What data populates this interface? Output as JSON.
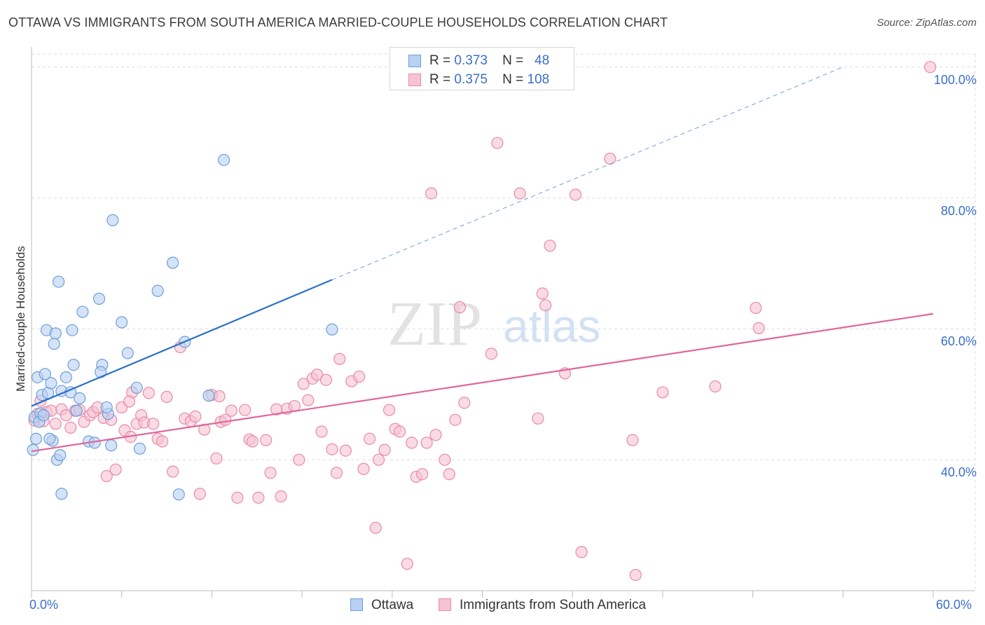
{
  "title": "OTTAWA VS IMMIGRANTS FROM SOUTH AMERICA MARRIED-COUPLE HOUSEHOLDS CORRELATION CHART",
  "source": "Source: ZipAtlas.com",
  "watermark": {
    "zip": "ZIP",
    "atlas": "atlas"
  },
  "legend_top": [
    {
      "r_label": "R =",
      "r_value": "0.373",
      "n_label": "N =",
      "n_value": "48"
    },
    {
      "r_label": "R =",
      "r_value": "0.375",
      "n_label": "N =",
      "n_value": "108"
    }
  ],
  "legend_bottom": [
    "Ottawa",
    "Immigrants from South America"
  ],
  "colors": {
    "ottawa_fill": "#b7d0f3",
    "ottawa_stroke": "#6f9ed8",
    "ottawa_line": "#2a6fc9",
    "sa_fill": "#f6c3d2",
    "sa_stroke": "#e88aa8",
    "sa_line": "#e0679a",
    "axis_label": "#3a6fc8",
    "grid": "#dddddd"
  },
  "chart_data": {
    "type": "scatter",
    "title": "OTTAWA VS IMMIGRANTS FROM SOUTH AMERICA MARRIED-COUPLE HOUSEHOLDS CORRELATION CHART",
    "xlabel": "",
    "ylabel": "Married-couple Households",
    "xlim": [
      0,
      60
    ],
    "ylim": [
      20,
      102
    ],
    "x_tick_labels": [
      "0.0%",
      "60.0%"
    ],
    "y_ticks": [
      40,
      60,
      80,
      100
    ],
    "y_tick_labels": [
      "40.0%",
      "60.0%",
      "80.0%",
      "100.0%"
    ],
    "grid": true,
    "series": [
      {
        "name": "Ottawa",
        "r": 0.373,
        "n": 48,
        "trend": {
          "x0": 0,
          "y0": 48.2,
          "x1": 20,
          "y1": 67.5,
          "dash_x1": 54,
          "dash_y1": 100
        },
        "points": [
          [
            0.2,
            46.5
          ],
          [
            0.4,
            52.6
          ],
          [
            0.6,
            47.1
          ],
          [
            0.3,
            43.2
          ],
          [
            0.1,
            41.5
          ],
          [
            0.5,
            45.8
          ],
          [
            0.7,
            49.9
          ],
          [
            0.9,
            53.1
          ],
          [
            1.1,
            50.2
          ],
          [
            1.3,
            51.7
          ],
          [
            1.0,
            59.8
          ],
          [
            1.6,
            59.3
          ],
          [
            1.5,
            57.7
          ],
          [
            1.8,
            67.2
          ],
          [
            2.0,
            50.5
          ],
          [
            2.3,
            52.6
          ],
          [
            2.7,
            59.8
          ],
          [
            2.8,
            54.5
          ],
          [
            2.6,
            50.3
          ],
          [
            3.2,
            49.4
          ],
          [
            3.4,
            62.6
          ],
          [
            3.8,
            42.8
          ],
          [
            4.2,
            42.6
          ],
          [
            4.5,
            64.6
          ],
          [
            4.7,
            54.5
          ],
          [
            4.6,
            53.4
          ],
          [
            5.1,
            47.0
          ],
          [
            5.3,
            42.2
          ],
          [
            5.4,
            76.6
          ],
          [
            6.0,
            61.0
          ],
          [
            6.4,
            56.3
          ],
          [
            7.0,
            51.0
          ],
          [
            7.2,
            41.7
          ],
          [
            8.4,
            65.8
          ],
          [
            9.4,
            70.1
          ],
          [
            10.2,
            58.0
          ],
          [
            11.8,
            49.8
          ],
          [
            12.8,
            85.8
          ],
          [
            1.4,
            42.9
          ],
          [
            1.7,
            40.0
          ],
          [
            2.0,
            34.8
          ],
          [
            9.8,
            34.7
          ],
          [
            20.0,
            59.9
          ],
          [
            0.8,
            46.8
          ],
          [
            1.9,
            40.7
          ],
          [
            3.0,
            47.5
          ],
          [
            1.2,
            43.2
          ],
          [
            5.0,
            48.0
          ]
        ]
      },
      {
        "name": "Immigrants from South America",
        "r": 0.375,
        "n": 108,
        "trend": {
          "x0": 0,
          "y0": 41.3,
          "x1": 60,
          "y1": 62.3
        },
        "points": [
          [
            0.2,
            46.0
          ],
          [
            0.4,
            47.0
          ],
          [
            0.6,
            49.0
          ],
          [
            0.8,
            45.9
          ],
          [
            1.0,
            47.3
          ],
          [
            1.3,
            47.5
          ],
          [
            1.6,
            45.5
          ],
          [
            2.0,
            47.7
          ],
          [
            2.3,
            46.8
          ],
          [
            2.6,
            44.9
          ],
          [
            2.9,
            47.5
          ],
          [
            3.2,
            47.6
          ],
          [
            3.5,
            45.8
          ],
          [
            3.9,
            46.8
          ],
          [
            4.1,
            47.3
          ],
          [
            4.4,
            48.0
          ],
          [
            4.8,
            46.4
          ],
          [
            5.0,
            37.5
          ],
          [
            5.3,
            46.1
          ],
          [
            5.6,
            38.5
          ],
          [
            6.0,
            48.0
          ],
          [
            6.2,
            44.5
          ],
          [
            6.6,
            43.5
          ],
          [
            6.7,
            50.3
          ],
          [
            7.0,
            45.5
          ],
          [
            7.3,
            46.8
          ],
          [
            7.5,
            45.7
          ],
          [
            7.8,
            50.2
          ],
          [
            8.1,
            45.5
          ],
          [
            8.4,
            43.2
          ],
          [
            8.7,
            42.8
          ],
          [
            9.0,
            49.6
          ],
          [
            9.4,
            38.2
          ],
          [
            9.9,
            57.2
          ],
          [
            10.2,
            46.3
          ],
          [
            10.6,
            45.9
          ],
          [
            10.9,
            46.6
          ],
          [
            11.2,
            34.8
          ],
          [
            11.5,
            44.6
          ],
          [
            12.0,
            49.9
          ],
          [
            12.3,
            40.2
          ],
          [
            12.6,
            45.8
          ],
          [
            12.9,
            46.1
          ],
          [
            13.3,
            47.5
          ],
          [
            13.7,
            34.2
          ],
          [
            14.2,
            47.6
          ],
          [
            14.5,
            43.1
          ],
          [
            14.7,
            42.8
          ],
          [
            15.1,
            34.2
          ],
          [
            15.6,
            43.0
          ],
          [
            15.9,
            38.0
          ],
          [
            16.3,
            47.7
          ],
          [
            16.6,
            34.4
          ],
          [
            17.0,
            47.8
          ],
          [
            17.5,
            48.2
          ],
          [
            17.8,
            40.0
          ],
          [
            18.1,
            51.6
          ],
          [
            18.4,
            49.1
          ],
          [
            18.7,
            52.4
          ],
          [
            19.0,
            53.0
          ],
          [
            19.3,
            44.3
          ],
          [
            19.6,
            52.2
          ],
          [
            20.0,
            41.6
          ],
          [
            20.3,
            38.0
          ],
          [
            20.5,
            55.4
          ],
          [
            20.9,
            41.4
          ],
          [
            21.3,
            52.0
          ],
          [
            21.8,
            52.7
          ],
          [
            22.1,
            38.6
          ],
          [
            22.5,
            43.2
          ],
          [
            22.9,
            29.6
          ],
          [
            23.1,
            40.0
          ],
          [
            23.5,
            41.5
          ],
          [
            23.8,
            47.6
          ],
          [
            24.2,
            44.7
          ],
          [
            24.5,
            44.3
          ],
          [
            25.0,
            24.1
          ],
          [
            25.3,
            42.6
          ],
          [
            25.6,
            37.4
          ],
          [
            26.0,
            37.8
          ],
          [
            26.3,
            42.6
          ],
          [
            26.9,
            43.8
          ],
          [
            27.5,
            40.0
          ],
          [
            27.8,
            37.8
          ],
          [
            28.2,
            46.1
          ],
          [
            28.5,
            63.3
          ],
          [
            28.8,
            48.7
          ],
          [
            30.6,
            56.2
          ],
          [
            31.0,
            88.4
          ],
          [
            32.5,
            80.7
          ],
          [
            33.7,
            46.3
          ],
          [
            34.0,
            65.4
          ],
          [
            34.2,
            63.6
          ],
          [
            34.5,
            72.7
          ],
          [
            35.5,
            53.2
          ],
          [
            36.2,
            80.5
          ],
          [
            36.6,
            25.9
          ],
          [
            38.5,
            86.0
          ],
          [
            40.0,
            43.0
          ],
          [
            40.2,
            22.4
          ],
          [
            42.0,
            50.3
          ],
          [
            45.5,
            51.2
          ],
          [
            48.2,
            63.2
          ],
          [
            48.4,
            60.1
          ],
          [
            59.8,
            100.0
          ],
          [
            12.5,
            49.7
          ],
          [
            26.6,
            80.7
          ],
          [
            6.5,
            48.9
          ]
        ]
      }
    ]
  }
}
